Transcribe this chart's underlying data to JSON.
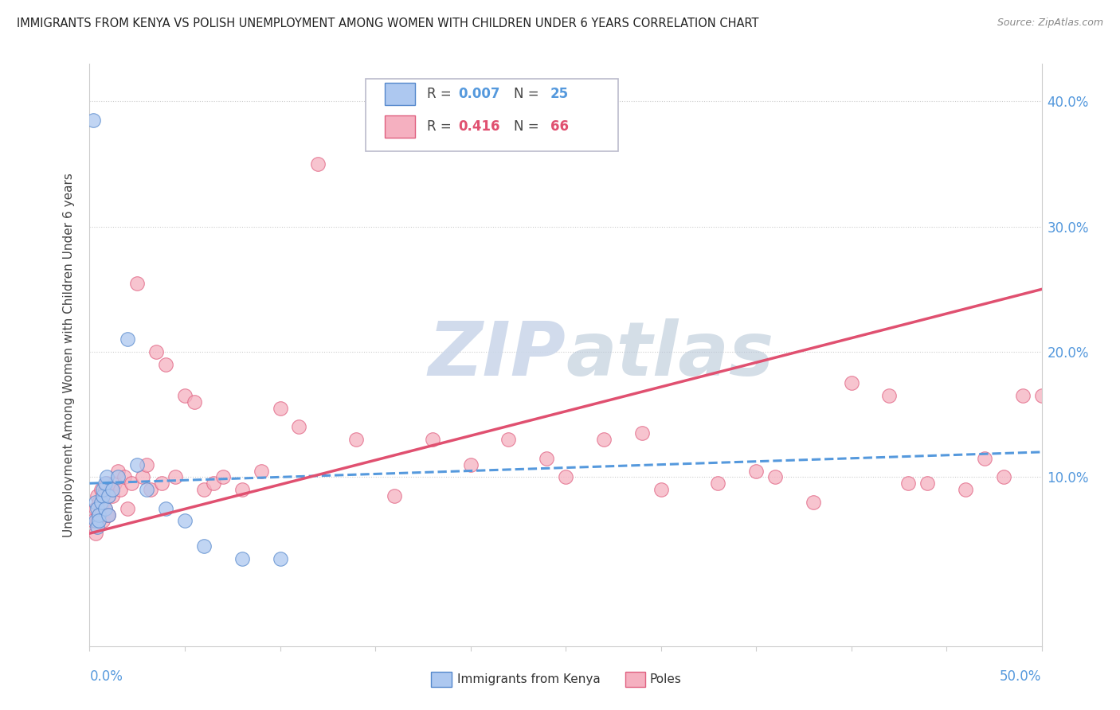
{
  "title": "IMMIGRANTS FROM KENYA VS POLISH UNEMPLOYMENT AMONG WOMEN WITH CHILDREN UNDER 6 YEARS CORRELATION CHART",
  "source": "Source: ZipAtlas.com",
  "ylabel": "Unemployment Among Women with Children Under 6 years",
  "xlim": [
    0.0,
    0.5
  ],
  "ylim": [
    -0.035,
    0.43
  ],
  "yticks": [
    0.0,
    0.1,
    0.2,
    0.3,
    0.4
  ],
  "kenya_color": "#adc8f0",
  "kenya_edge_color": "#5588cc",
  "poles_color": "#f5b0c0",
  "poles_edge_color": "#e06080",
  "kenya_line_color": "#5599dd",
  "poles_line_color": "#e05070",
  "watermark_color": "#ccd8ea",
  "title_color": "#222222",
  "source_color": "#888888",
  "axis_color": "#cccccc",
  "tick_label_color": "#5599dd",
  "ylabel_color": "#444444",
  "legend_border_color": "#bbbbcc",
  "kenya_x": [
    0.002,
    0.003,
    0.003,
    0.004,
    0.004,
    0.005,
    0.005,
    0.006,
    0.007,
    0.007,
    0.008,
    0.008,
    0.009,
    0.01,
    0.01,
    0.012,
    0.015,
    0.02,
    0.025,
    0.03,
    0.04,
    0.05,
    0.06,
    0.08,
    0.1
  ],
  "kenya_y": [
    0.385,
    0.08,
    0.065,
    0.075,
    0.06,
    0.07,
    0.065,
    0.08,
    0.085,
    0.09,
    0.095,
    0.075,
    0.1,
    0.085,
    0.07,
    0.09,
    0.1,
    0.21,
    0.11,
    0.09,
    0.075,
    0.065,
    0.045,
    0.035,
    0.035
  ],
  "poles_x": [
    0.002,
    0.003,
    0.003,
    0.004,
    0.004,
    0.005,
    0.005,
    0.006,
    0.006,
    0.007,
    0.007,
    0.008,
    0.008,
    0.009,
    0.009,
    0.01,
    0.01,
    0.011,
    0.012,
    0.013,
    0.015,
    0.016,
    0.018,
    0.02,
    0.022,
    0.025,
    0.028,
    0.03,
    0.032,
    0.035,
    0.038,
    0.04,
    0.045,
    0.05,
    0.055,
    0.06,
    0.065,
    0.07,
    0.08,
    0.09,
    0.1,
    0.11,
    0.12,
    0.14,
    0.16,
    0.18,
    0.2,
    0.22,
    0.25,
    0.27,
    0.3,
    0.33,
    0.36,
    0.38,
    0.4,
    0.42,
    0.44,
    0.46,
    0.48,
    0.5,
    0.24,
    0.29,
    0.35,
    0.43,
    0.47,
    0.49
  ],
  "poles_y": [
    0.065,
    0.075,
    0.055,
    0.085,
    0.065,
    0.07,
    0.08,
    0.075,
    0.09,
    0.08,
    0.065,
    0.09,
    0.075,
    0.095,
    0.07,
    0.085,
    0.07,
    0.09,
    0.085,
    0.095,
    0.105,
    0.09,
    0.1,
    0.075,
    0.095,
    0.255,
    0.1,
    0.11,
    0.09,
    0.2,
    0.095,
    0.19,
    0.1,
    0.165,
    0.16,
    0.09,
    0.095,
    0.1,
    0.09,
    0.105,
    0.155,
    0.14,
    0.35,
    0.13,
    0.085,
    0.13,
    0.11,
    0.13,
    0.1,
    0.13,
    0.09,
    0.095,
    0.1,
    0.08,
    0.175,
    0.165,
    0.095,
    0.09,
    0.1,
    0.165,
    0.115,
    0.135,
    0.105,
    0.095,
    0.115,
    0.165
  ],
  "kenya_line_x": [
    0.0,
    0.5
  ],
  "kenya_line_y": [
    0.095,
    0.12
  ],
  "poles_line_x": [
    0.0,
    0.5
  ],
  "poles_line_y": [
    0.055,
    0.25
  ]
}
